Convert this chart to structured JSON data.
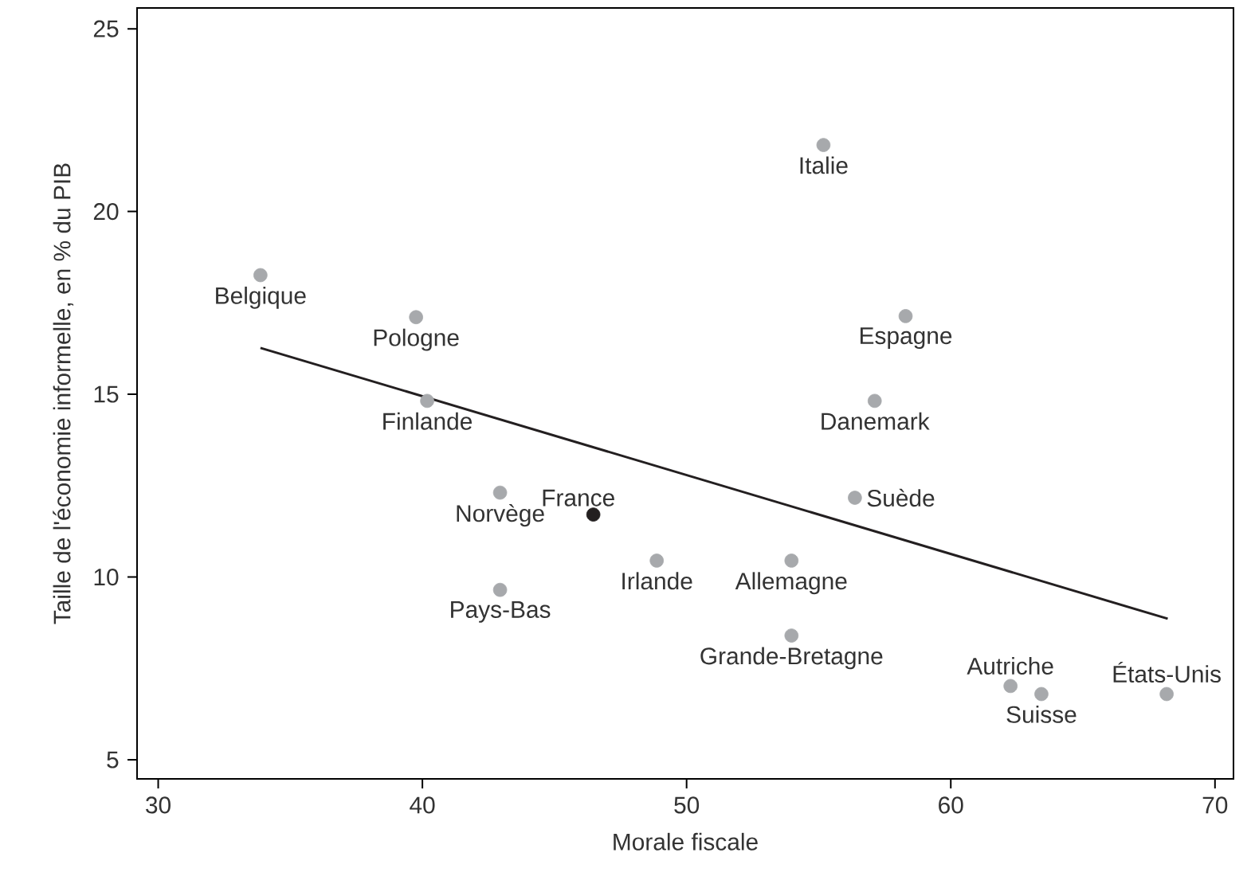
{
  "chart_data": {
    "type": "scatter",
    "xlabel": "Morale fiscale",
    "ylabel": "Taille de l'économie informelle, en % du PIB",
    "xlim": [
      29.2,
      70.7
    ],
    "ylim": [
      4.48,
      25.57
    ],
    "xticks": [
      30,
      40,
      50,
      60,
      70
    ],
    "yticks": [
      5,
      10,
      15,
      20,
      25
    ],
    "grid": false,
    "marker": "circle",
    "series": [
      {
        "x": [
          33.87,
          39.76,
          40.18,
          42.94,
          46.47,
          42.94,
          48.87,
          55.18,
          58.29,
          57.12,
          56.37,
          53.97,
          53.97,
          62.26,
          63.43,
          68.17
        ],
        "values": [
          18.26,
          17.11,
          14.82,
          12.31,
          11.71,
          9.65,
          10.45,
          21.82,
          17.14,
          14.82,
          12.17,
          10.45,
          8.4,
          7.02,
          6.8,
          6.8
        ],
        "colors": [
          "#a7a9ac",
          "#a7a9ac",
          "#a7a9ac",
          "#a7a9ac",
          "#231f20",
          "#a7a9ac",
          "#a7a9ac",
          "#a7a9ac",
          "#a7a9ac",
          "#a7a9ac",
          "#a7a9ac",
          "#a7a9ac",
          "#a7a9ac",
          "#a7a9ac",
          "#a7a9ac",
          "#a7a9ac"
        ]
      },
      {
        "type": "line",
        "x": [
          33.87,
          68.21
        ],
        "values": [
          16.27,
          8.86
        ],
        "color": "#231f20",
        "line_style": "solid",
        "marker": "none"
      }
    ],
    "annotations": [
      {
        "text": "Belgique",
        "x": 33.87,
        "y": 18.26
      },
      {
        "text": "Pologne",
        "x": 39.76,
        "y": 17.11
      },
      {
        "text": "Finlande",
        "x": 40.18,
        "y": 14.82
      },
      {
        "text": "Norvège",
        "x": 42.94,
        "y": 12.31
      },
      {
        "text": "France",
        "x": 46.47,
        "y": 11.71
      },
      {
        "text": "Pays-Bas",
        "x": 42.94,
        "y": 9.65
      },
      {
        "text": "Irlande",
        "x": 48.87,
        "y": 10.45
      },
      {
        "text": "Italie",
        "x": 55.18,
        "y": 21.82
      },
      {
        "text": "Espagne",
        "x": 58.29,
        "y": 17.14
      },
      {
        "text": "Danemark",
        "x": 57.12,
        "y": 14.82
      },
      {
        "text": "Suède",
        "x": 56.37,
        "y": 12.17
      },
      {
        "text": "Allemagne",
        "x": 53.97,
        "y": 10.45
      },
      {
        "text": "Grande-Bretagne",
        "x": 53.97,
        "y": 8.4
      },
      {
        "text": "Autriche",
        "x": 62.26,
        "y": 7.02
      },
      {
        "text": "Suisse",
        "x": 63.43,
        "y": 6.8
      },
      {
        "text": "États-Unis",
        "x": 68.17,
        "y": 6.8
      }
    ]
  }
}
